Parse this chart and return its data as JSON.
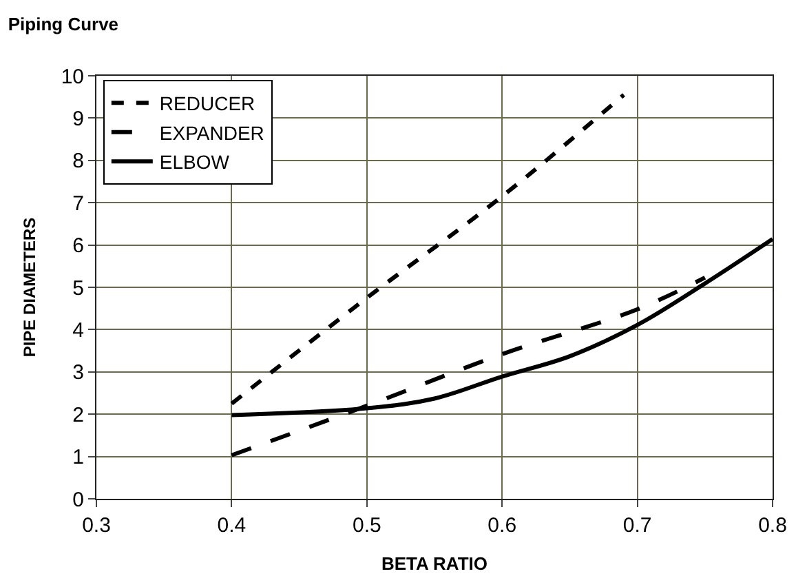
{
  "chart_data": {
    "type": "line",
    "title": "Piping Curve",
    "xlabel": "BETA RATIO",
    "ylabel": "PIPE DIAMETERS",
    "xlim": [
      0.3,
      0.8
    ],
    "xticks": [
      0.3,
      0.4,
      0.5,
      0.6,
      0.7,
      0.8
    ],
    "ylim": [
      0,
      10
    ],
    "yticks": [
      0,
      1,
      2,
      3,
      4,
      5,
      6,
      7,
      8,
      9,
      10
    ],
    "grid": true,
    "legend": "top left",
    "marker": "none",
    "series": [
      {
        "name": "REDUCER",
        "color": "#000000",
        "line_style": "dotted",
        "x": [
          0.4,
          0.5,
          0.6,
          0.69
        ],
        "values": [
          2.25,
          4.75,
          7.15,
          9.55
        ]
      },
      {
        "name": "EXPANDER",
        "color": "#000000",
        "line_style": "dashed",
        "x": [
          0.4,
          0.5,
          0.6,
          0.7,
          0.75
        ],
        "values": [
          1.03,
          2.2,
          3.42,
          4.48,
          5.23
        ]
      },
      {
        "name": "ELBOW",
        "color": "#000000",
        "line_style": "solid",
        "x": [
          0.4,
          0.5,
          0.55,
          0.6,
          0.65,
          0.7,
          0.75,
          0.8
        ],
        "values": [
          1.98,
          2.14,
          2.37,
          2.89,
          3.37,
          4.11,
          5.09,
          6.14
        ]
      }
    ]
  }
}
